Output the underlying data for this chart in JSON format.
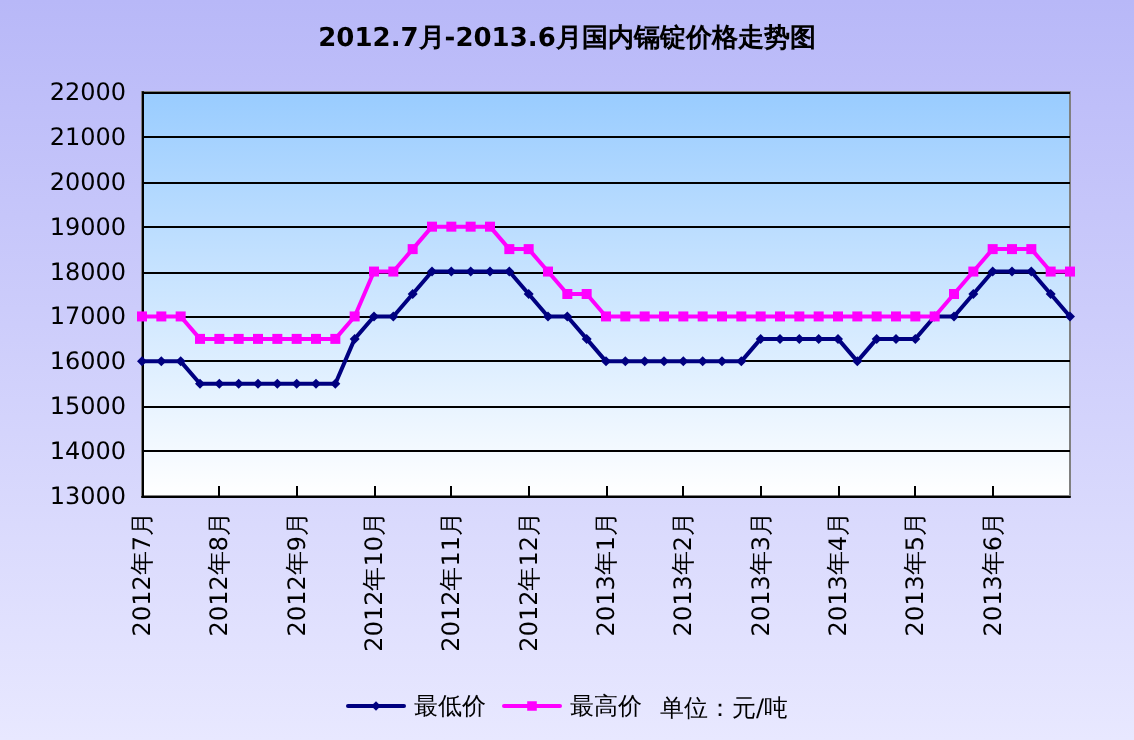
{
  "chart_data": {
    "type": "line",
    "title": "2012.7月-2013.6月国内镉锭价格走势图",
    "categories": [
      "2012年7月",
      null,
      null,
      null,
      "2012年8月",
      null,
      null,
      null,
      "2012年9月",
      null,
      null,
      null,
      "2012年10月",
      null,
      null,
      null,
      "2012年11月",
      null,
      null,
      null,
      "2012年12月",
      null,
      null,
      null,
      "2013年1月",
      null,
      null,
      null,
      "2013年2月",
      null,
      null,
      null,
      "2013年3月",
      null,
      null,
      null,
      "2013年4月",
      null,
      null,
      null,
      "2013年5月",
      null,
      null,
      null,
      "2013年6月",
      null,
      null,
      null,
      null
    ],
    "series": [
      {
        "name": "最低价",
        "color": "#000080",
        "marker": "diamond",
        "values": [
          16000,
          16000,
          16000,
          15500,
          15500,
          15500,
          15500,
          15500,
          15500,
          15500,
          15500,
          16500,
          17000,
          17000,
          17500,
          18000,
          18000,
          18000,
          18000,
          18000,
          17500,
          17000,
          17000,
          16500,
          16000,
          16000,
          16000,
          16000,
          16000,
          16000,
          16000,
          16000,
          16500,
          16500,
          16500,
          16500,
          16500,
          16000,
          16500,
          16500,
          16500,
          17000,
          17000,
          17500,
          18000,
          18000,
          18000,
          17500,
          17000
        ]
      },
      {
        "name": "最高价",
        "color": "#ff00ff",
        "marker": "square",
        "values": [
          17000,
          17000,
          17000,
          16500,
          16500,
          16500,
          16500,
          16500,
          16500,
          16500,
          16500,
          17000,
          18000,
          18000,
          18500,
          19000,
          19000,
          19000,
          19000,
          18500,
          18500,
          18000,
          17500,
          17500,
          17000,
          17000,
          17000,
          17000,
          17000,
          17000,
          17000,
          17000,
          17000,
          17000,
          17000,
          17000,
          17000,
          17000,
          17000,
          17000,
          17000,
          17000,
          17500,
          18000,
          18500,
          18500,
          18500,
          18000,
          18000
        ]
      }
    ],
    "ylim": [
      13000,
      22000
    ],
    "yticks": [
      13000,
      14000,
      15000,
      16000,
      17000,
      18000,
      19000,
      20000,
      21000,
      22000
    ],
    "grid": "y",
    "legend": "bottom",
    "annotations": [
      "单位：元/吨"
    ]
  }
}
